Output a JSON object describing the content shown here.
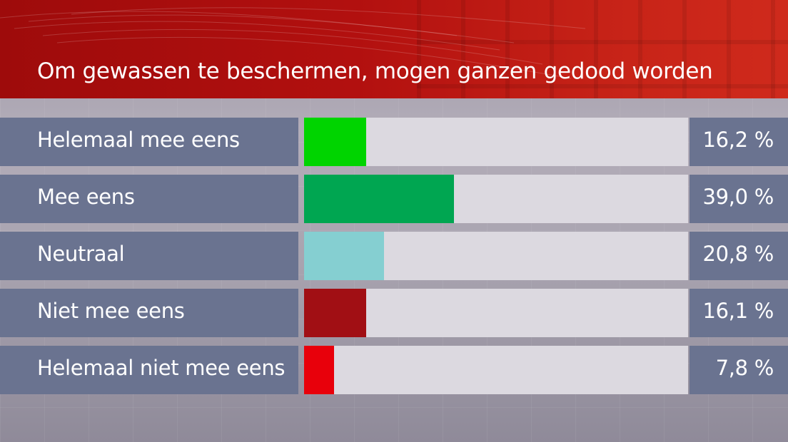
{
  "chart_data": {
    "type": "bar",
    "orientation": "horizontal",
    "title": "Om gewassen te beschermen, mogen ganzen gedood worden",
    "unit": "%",
    "xlim": [
      0,
      100
    ],
    "grid": false,
    "categories": [
      "Helemaal mee eens",
      "Mee eens",
      "Neutraal",
      "Niet mee eens",
      "Helemaal niet mee eens"
    ],
    "values": [
      16.2,
      39.0,
      20.8,
      16.1,
      7.8
    ],
    "value_labels": [
      "16,2 %",
      "39,0 %",
      "20,8 %",
      "16,1 %",
      "7,8 %"
    ],
    "colors": [
      "#00d400",
      "#00a651",
      "#85cfd1",
      "#a10f14",
      "#e8000b"
    ]
  }
}
